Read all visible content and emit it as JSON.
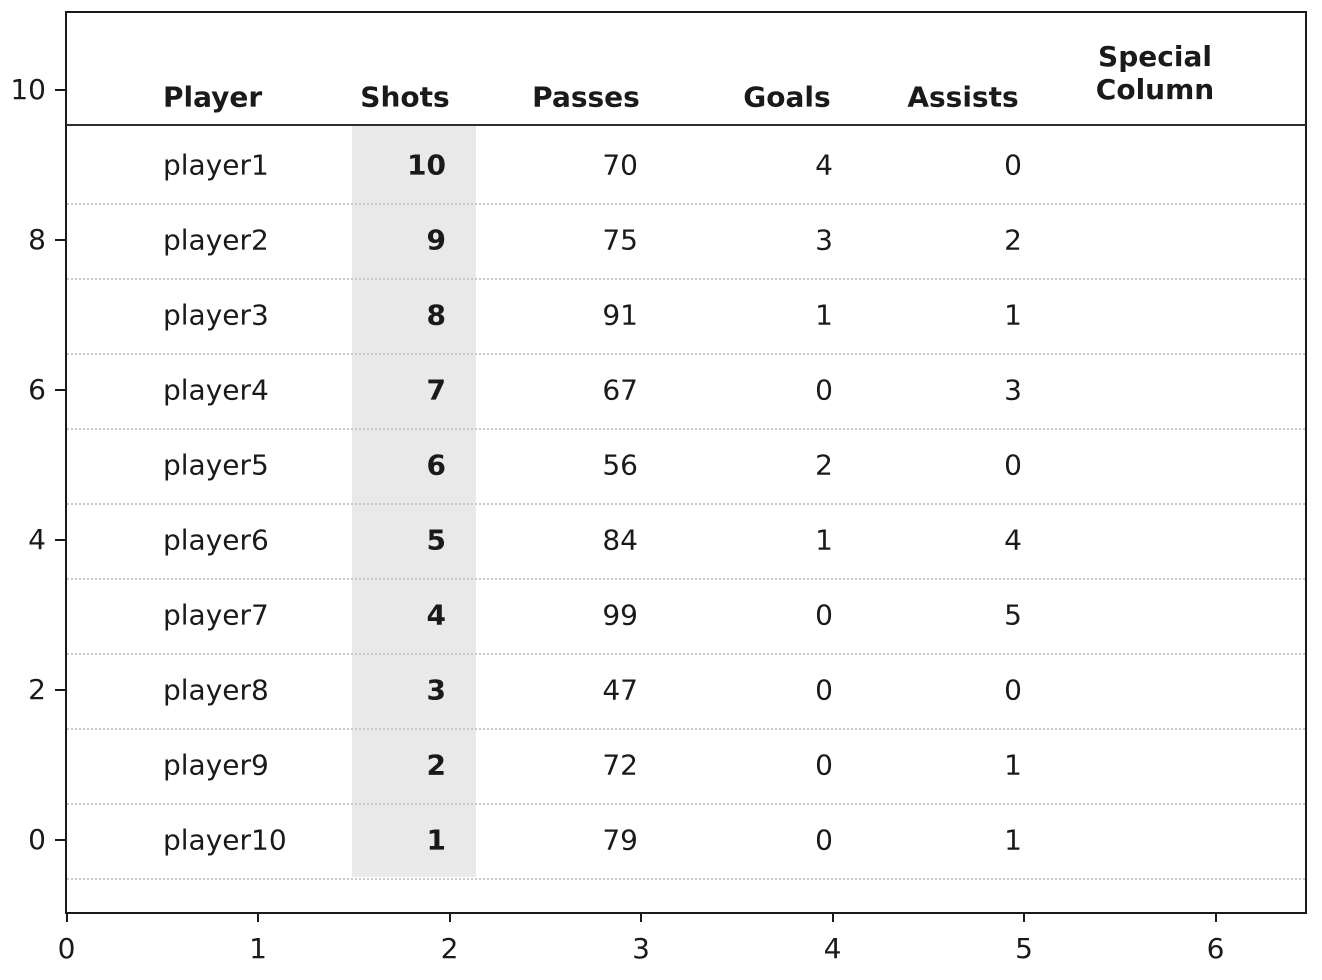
{
  "figure": {
    "background_color": "#ffffff",
    "text_color": "#1a1a1a",
    "highlight_band_color": "#e9e9e9",
    "highlighted_column": "Shots"
  },
  "chart_data": {
    "type": "table",
    "title": "",
    "xlabel": "",
    "ylabel": "",
    "columns": [
      "Player",
      "Shots",
      "Passes",
      "Goals",
      "Assists",
      "Special Column"
    ],
    "rows": [
      {
        "player": "player1",
        "shots": "10",
        "passes": "70",
        "goals": "4",
        "assists": "0",
        "special": ""
      },
      {
        "player": "player2",
        "shots": "9",
        "passes": "75",
        "goals": "3",
        "assists": "2",
        "special": ""
      },
      {
        "player": "player3",
        "shots": "8",
        "passes": "91",
        "goals": "1",
        "assists": "1",
        "special": ""
      },
      {
        "player": "player4",
        "shots": "7",
        "passes": "67",
        "goals": "0",
        "assists": "3",
        "special": ""
      },
      {
        "player": "player5",
        "shots": "6",
        "passes": "56",
        "goals": "2",
        "assists": "0",
        "special": ""
      },
      {
        "player": "player6",
        "shots": "5",
        "passes": "84",
        "goals": "1",
        "assists": "4",
        "special": ""
      },
      {
        "player": "player7",
        "shots": "4",
        "passes": "99",
        "goals": "0",
        "assists": "5",
        "special": ""
      },
      {
        "player": "player8",
        "shots": "3",
        "passes": "47",
        "goals": "0",
        "assists": "0",
        "special": ""
      },
      {
        "player": "player9",
        "shots": "2",
        "passes": "72",
        "goals": "0",
        "assists": "1",
        "special": ""
      },
      {
        "player": "player10",
        "shots": "1",
        "passes": "79",
        "goals": "0",
        "assists": "1",
        "special": ""
      }
    ],
    "x_axis": {
      "tick_labels": [
        "0",
        "1",
        "2",
        "3",
        "4",
        "5",
        "6"
      ],
      "tick_values": [
        0,
        1,
        2,
        3,
        4,
        5,
        6
      ],
      "range": [
        0,
        6.5
      ]
    },
    "y_axis": {
      "tick_labels": [
        "10",
        "8",
        "6",
        "4",
        "2",
        "0"
      ],
      "tick_values": [
        10,
        8,
        6,
        4,
        2,
        0
      ],
      "range": [
        -1,
        11
      ]
    },
    "grid": "dotted horizontal separators between rows, solid line under header",
    "legend": "none",
    "style_notes": "Shots column shaded gray; header row and Shots values bold; numeric cells right-aligned; player names left-aligned"
  }
}
